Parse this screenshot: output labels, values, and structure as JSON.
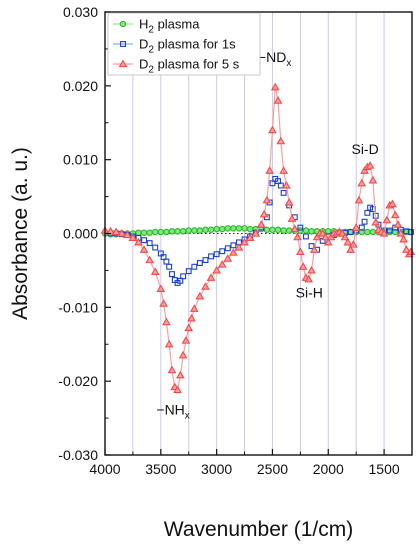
{
  "chart_data": {
    "type": "line",
    "xlabel": "Wavenumber (1/cm)",
    "ylabel": "Absorbance (a. u.)",
    "xlim": [
      4000,
      1250
    ],
    "ylim": [
      -0.03,
      0.03
    ],
    "x_reversed": true,
    "x_ticks": [
      4000,
      3500,
      3000,
      2500,
      2000,
      1500
    ],
    "x_tick_labels": [
      "4000",
      "3500",
      "3000",
      "2500",
      "2000",
      "1500"
    ],
    "y_ticks": [
      0.03,
      0.02,
      0.01,
      0.0,
      -0.01,
      -0.02,
      -0.03
    ],
    "y_tick_labels": [
      "0.030",
      "0.020",
      "0.010",
      "0.000",
      "-0.010",
      "-0.020",
      "-0.030"
    ],
    "vertical_grid": [
      3750,
      3500,
      3250,
      3000,
      2750,
      2500,
      2250,
      2000,
      1750,
      1500
    ],
    "zero_line": true,
    "legend": {
      "position": "top-left",
      "entries": [
        {
          "main": "H",
          "sub": "2",
          "rest": " plasma"
        },
        {
          "main": "D",
          "sub": "2",
          "rest": " plasma for 1s"
        },
        {
          "main": "D",
          "sub": "2",
          "rest": " plasma for 5 s"
        }
      ]
    },
    "annotations": [
      {
        "main": "−ND",
        "sub": "x",
        "x": 2480,
        "y": 0.0232
      },
      {
        "main": "Si-D",
        "sub": "",
        "x": 1670,
        "y": 0.0108
      },
      {
        "main": "Si-H",
        "sub": "",
        "x": 2170,
        "y": -0.0087
      },
      {
        "main": "−NH",
        "sub": "x",
        "x": 3390,
        "y": -0.0245
      }
    ],
    "series": [
      {
        "name": "H2 plasma",
        "marker": "circle",
        "color": "#2db82d",
        "fill": "#7fe87f",
        "x": [
          4000,
          3950,
          3900,
          3850,
          3800,
          3750,
          3700,
          3650,
          3600,
          3550,
          3500,
          3450,
          3400,
          3350,
          3300,
          3250,
          3200,
          3150,
          3100,
          3050,
          3000,
          2950,
          2900,
          2850,
          2800,
          2750,
          2700,
          2650,
          2600,
          2550,
          2500,
          2450,
          2400,
          2350,
          2300,
          2250,
          2200,
          2150,
          2100,
          2050,
          2000,
          1950,
          1900,
          1850,
          1800,
          1750,
          1700,
          1650,
          1600,
          1550,
          1500,
          1450,
          1400,
          1350,
          1300,
          1260
        ],
        "y": [
          0.0,
          -0.0001,
          -0.0001,
          0.0,
          0.0,
          0.0,
          0.0001,
          0.0001,
          0.0001,
          0.0002,
          0.0002,
          0.0002,
          0.0003,
          0.0003,
          0.0003,
          0.0004,
          0.0004,
          0.0004,
          0.0005,
          0.0005,
          0.0006,
          0.0006,
          0.0007,
          0.0007,
          0.0007,
          0.0007,
          0.0006,
          0.0006,
          0.0006,
          0.0005,
          0.0005,
          0.0005,
          0.0004,
          0.0004,
          0.0004,
          0.0004,
          0.0004,
          0.0003,
          0.0003,
          0.0003,
          0.0003,
          0.0003,
          0.0002,
          0.0002,
          0.0002,
          0.0002,
          0.0002,
          0.0002,
          0.0002,
          0.0002,
          0.0002,
          0.0002,
          0.0002,
          0.0002,
          0.0002,
          0.0002
        ]
      },
      {
        "name": "D2 plasma for 1s",
        "marker": "square",
        "color": "#1a3fd6",
        "fill": "none",
        "x": [
          3950,
          3900,
          3850,
          3800,
          3750,
          3700,
          3650,
          3600,
          3550,
          3500,
          3475,
          3450,
          3425,
          3400,
          3375,
          3350,
          3325,
          3300,
          3250,
          3200,
          3150,
          3100,
          3050,
          3000,
          2950,
          2900,
          2850,
          2800,
          2750,
          2700,
          2650,
          2600,
          2550,
          2525,
          2500,
          2475,
          2450,
          2425,
          2400,
          2350,
          2300,
          2250,
          2200,
          2150,
          2100,
          2050,
          2000,
          1950,
          1900,
          1850,
          1800,
          1750,
          1700,
          1675,
          1650,
          1625,
          1600,
          1575,
          1550,
          1500,
          1450,
          1400,
          1350,
          1300,
          1260
        ],
        "y": [
          0.0,
          0.0,
          -0.0001,
          -0.0002,
          -0.0004,
          -0.0006,
          -0.0009,
          -0.0013,
          -0.0019,
          -0.0027,
          -0.0032,
          -0.0038,
          -0.0045,
          -0.0055,
          -0.0063,
          -0.0067,
          -0.0064,
          -0.0058,
          -0.0051,
          -0.0045,
          -0.004,
          -0.0036,
          -0.0031,
          -0.0028,
          -0.0024,
          -0.002,
          -0.0016,
          -0.0012,
          -0.0008,
          -0.0004,
          0.0001,
          0.0008,
          0.0022,
          0.0042,
          0.0068,
          0.0074,
          0.0071,
          0.0065,
          0.0055,
          0.0038,
          0.0022,
          0.0008,
          -0.0004,
          -0.0017,
          -0.0022,
          -0.001,
          -0.0004,
          -0.0002,
          0.0,
          0.0001,
          0.0002,
          0.0004,
          0.0008,
          0.0016,
          0.0028,
          0.0035,
          0.0033,
          0.0024,
          0.0012,
          0.0004,
          0.0004,
          0.0008,
          0.0005,
          0.0003,
          0.0002
        ]
      },
      {
        "name": "D2 plasma for 5 s",
        "marker": "triangle",
        "color": "#f04a4a",
        "fill": "#ff9e9e",
        "x": [
          4000,
          3950,
          3900,
          3850,
          3800,
          3750,
          3700,
          3650,
          3600,
          3550,
          3500,
          3475,
          3450,
          3425,
          3400,
          3375,
          3350,
          3325,
          3300,
          3275,
          3250,
          3225,
          3200,
          3150,
          3100,
          3050,
          3000,
          2950,
          2900,
          2850,
          2800,
          2750,
          2700,
          2650,
          2600,
          2575,
          2550,
          2525,
          2500,
          2475,
          2450,
          2425,
          2400,
          2375,
          2350,
          2325,
          2300,
          2275,
          2250,
          2225,
          2200,
          2175,
          2150,
          2125,
          2100,
          2075,
          2050,
          2025,
          2000,
          1975,
          1950,
          1925,
          1900,
          1875,
          1850,
          1825,
          1800,
          1775,
          1750,
          1725,
          1700,
          1675,
          1650,
          1625,
          1600,
          1575,
          1550,
          1525,
          1500,
          1475,
          1450,
          1425,
          1400,
          1375,
          1350,
          1325,
          1300,
          1275,
          1260
        ],
        "y": [
          0.0004,
          0.0003,
          0.0002,
          0.0,
          -0.0002,
          -0.0006,
          -0.0012,
          -0.0022,
          -0.0036,
          -0.0052,
          -0.0075,
          -0.0095,
          -0.012,
          -0.015,
          -0.0185,
          -0.0208,
          -0.0212,
          -0.0192,
          -0.0165,
          -0.0145,
          -0.0128,
          -0.0115,
          -0.0102,
          -0.0085,
          -0.0072,
          -0.006,
          -0.005,
          -0.0042,
          -0.0034,
          -0.0026,
          -0.0019,
          -0.0012,
          -0.0006,
          0.0,
          0.0012,
          0.0026,
          0.0045,
          0.0085,
          0.014,
          0.0198,
          0.018,
          0.0125,
          0.0085,
          0.0065,
          0.0042,
          0.002,
          0.0006,
          -0.0005,
          -0.0025,
          -0.0045,
          -0.006,
          -0.0062,
          -0.005,
          -0.0022,
          -0.0005,
          0.0,
          0.0,
          -0.0005,
          -0.0012,
          -0.0005,
          0.0,
          0.0,
          0.0002,
          0.0,
          -0.0005,
          -0.0012,
          -0.0022,
          -0.0015,
          0.0008,
          0.0045,
          0.0068,
          0.0085,
          0.009,
          0.0092,
          0.0072,
          0.0015,
          0.0005,
          0.0002,
          0.0,
          0.0018,
          0.0038,
          0.004,
          0.0025,
          0.0012,
          0.0,
          -0.0008,
          -0.0022,
          -0.0028,
          -0.0025
        ]
      }
    ]
  }
}
